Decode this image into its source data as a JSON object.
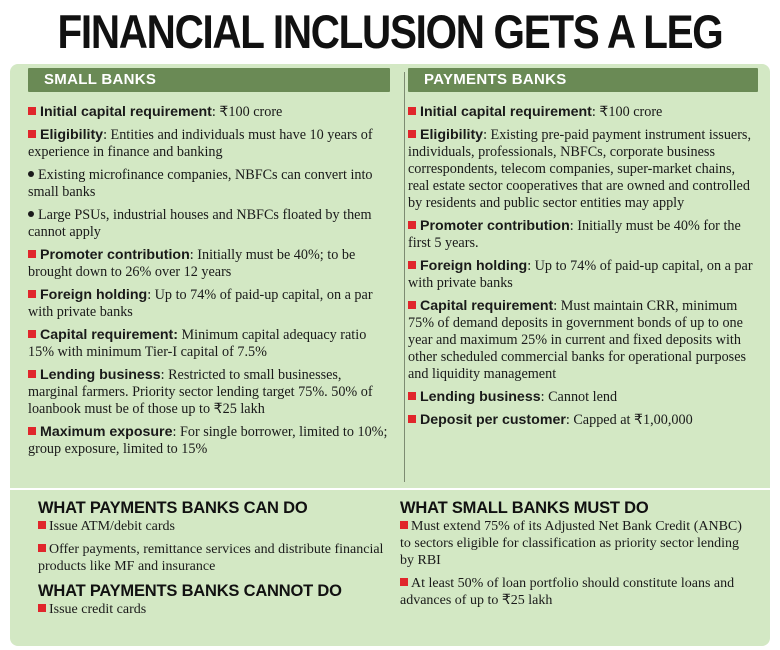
{
  "title": "FINANCIAL INCLUSION GETS A LEG UP",
  "small_banks": {
    "header": "SMALL BANKS",
    "items": [
      {
        "marker": "square",
        "head": "Initial capital requirement",
        "text": ": ₹100 crore"
      },
      {
        "marker": "square",
        "head": "Eligibility",
        "text": ": Entities and individuals must have 10 years of experience in finance and banking"
      },
      {
        "marker": "dot",
        "head": "",
        "text": "Existing microfinance companies, NBFCs can convert into small banks"
      },
      {
        "marker": "dot",
        "head": "",
        "text": "Large PSUs, industrial houses and NBFCs floated by them cannot apply"
      },
      {
        "marker": "square",
        "head": "Promoter contribution",
        "text": ": Initially must be 40%; to be brought down to 26% over 12 years"
      },
      {
        "marker": "square",
        "head": "Foreign holding",
        "text": ": Up to 74% of paid-up capital, on a par with private banks"
      },
      {
        "marker": "square",
        "head": "Capital requirement:",
        "text": " Minimum capital adequacy ratio 15% with minimum Tier-I capital of 7.5%"
      },
      {
        "marker": "square",
        "head": "Lending business",
        "text": ": Restricted to small businesses, marginal farmers. Priority sector lending target 75%. 50% of loanbook must be of those up to ₹25 lakh"
      },
      {
        "marker": "square",
        "head": "Maximum exposure",
        "text": ": For single borrower, limited to 10%; group exposure, limited to 15%"
      }
    ]
  },
  "payments_banks": {
    "header": "PAYMENTS BANKS",
    "items": [
      {
        "marker": "square",
        "head": "Initial capital requirement",
        "text": ": ₹100 crore"
      },
      {
        "marker": "square",
        "head": "Eligibility",
        "text": ": Existing pre-paid payment instrument issuers, individuals, professionals, NBFCs, corporate business correspondents, telecom companies, super-market chains, real estate sector cooperatives that are owned and controlled by residents and public sector entities may apply"
      },
      {
        "marker": "square",
        "head": "Promoter contribution",
        "text": ": Initially must be 40% for the first 5 years."
      },
      {
        "marker": "square",
        "head": "Foreign holding",
        "text": ": Up to 74% of paid-up capital, on a par with private banks"
      },
      {
        "marker": "square",
        "head": "Capital requirement",
        "text": ": Must maintain CRR, minimum 75% of demand deposits in government bonds of up to one year and maximum 25% in current and fixed deposits with other scheduled commercial banks for operational purposes and liquidity management"
      },
      {
        "marker": "square",
        "head": "Lending business",
        "text": ": Cannot lend"
      },
      {
        "marker": "square",
        "head": "Deposit per customer",
        "text": ": Capped at ₹1,00,000"
      }
    ]
  },
  "can_do": {
    "title": "WHAT PAYMENTS BANKS CAN DO",
    "items": [
      "Issue ATM/debit cards",
      "Offer payments, remittance services and distribute financial products like MF and insurance"
    ]
  },
  "cannot_do": {
    "title": "WHAT PAYMENTS BANKS CANNOT DO",
    "items": [
      "Issue credit cards"
    ]
  },
  "must_do": {
    "title": "WHAT SMALL BANKS MUST DO",
    "items": [
      "Must extend 75% of its Adjusted Net Bank Credit (ANBC) to sectors eligible for classification as priority sector lending by RBI",
      "At least 50% of loan portfolio should constitute loans and advances of up to ₹25 lakh"
    ]
  },
  "colors": {
    "panel": "#d3e8c4",
    "header_bar": "#6a8a55",
    "bullet_red": "#e0262b"
  }
}
